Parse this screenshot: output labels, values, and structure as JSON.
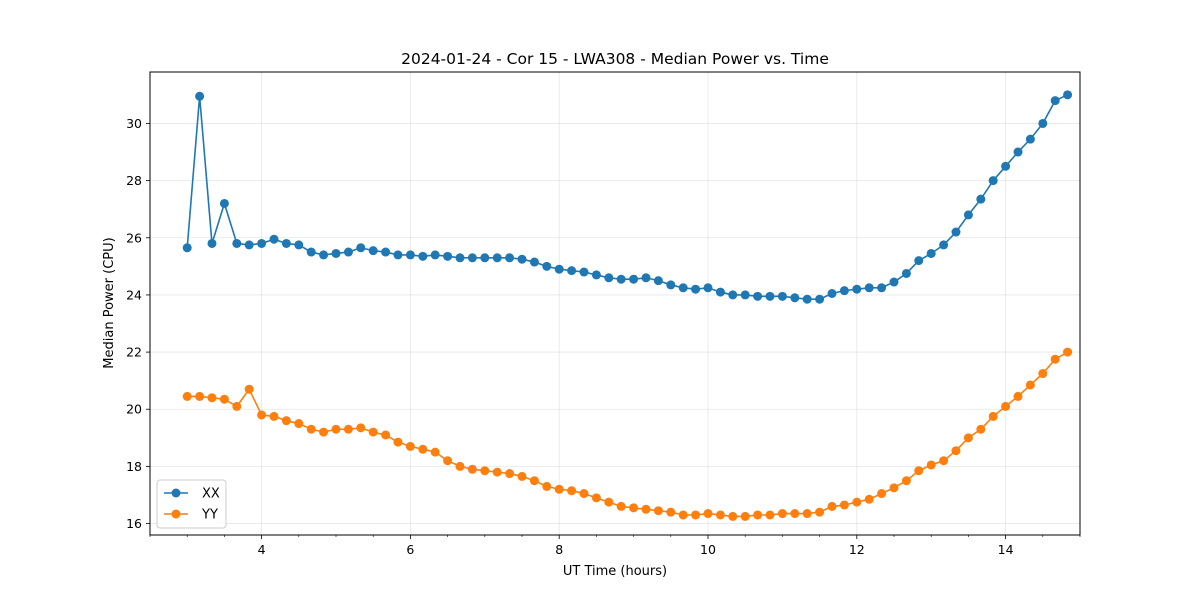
{
  "chart_data": {
    "type": "line",
    "title": "2024-01-24 - Cor 15 - LWA308 - Median Power vs. Time",
    "xlabel": "UT Time (hours)",
    "ylabel": "Median Power (CPU)",
    "xlim": [
      2.5,
      15.0
    ],
    "ylim": [
      15.6,
      31.8
    ],
    "x_ticks": [
      4,
      6,
      8,
      10,
      12,
      14
    ],
    "x_tick_labels": [
      "4",
      "6",
      "8",
      "10",
      "12",
      "14"
    ],
    "y_ticks": [
      16,
      18,
      20,
      22,
      24,
      26,
      28,
      30
    ],
    "y_tick_labels": [
      "16",
      "18",
      "20",
      "22",
      "24",
      "26",
      "28",
      "30"
    ],
    "grid": true,
    "legend": "lower-left",
    "x": [
      3.0,
      3.167,
      3.333,
      3.5,
      3.667,
      3.833,
      4.0,
      4.167,
      4.333,
      4.5,
      4.667,
      4.833,
      5.0,
      5.167,
      5.333,
      5.5,
      5.667,
      5.833,
      6.0,
      6.167,
      6.333,
      6.5,
      6.667,
      6.833,
      7.0,
      7.167,
      7.333,
      7.5,
      7.667,
      7.833,
      8.0,
      8.167,
      8.333,
      8.5,
      8.667,
      8.833,
      9.0,
      9.167,
      9.333,
      9.5,
      9.667,
      9.833,
      10.0,
      10.167,
      10.333,
      10.5,
      10.667,
      10.833,
      11.0,
      11.167,
      11.333,
      11.5,
      11.667,
      11.833,
      12.0,
      12.167,
      12.333,
      12.5,
      12.667,
      12.833,
      13.0,
      13.167,
      13.333,
      13.5,
      13.667,
      13.833,
      14.0,
      14.167,
      14.333,
      14.5,
      14.667,
      14.833
    ],
    "series": [
      {
        "name": "XX",
        "color": "#1f77b4",
        "values": [
          25.65,
          30.95,
          25.8,
          27.2,
          25.8,
          25.75,
          25.8,
          25.95,
          25.8,
          25.75,
          25.5,
          25.4,
          25.45,
          25.5,
          25.65,
          25.55,
          25.5,
          25.4,
          25.4,
          25.35,
          25.4,
          25.35,
          25.3,
          25.3,
          25.3,
          25.3,
          25.3,
          25.25,
          25.15,
          25.0,
          24.9,
          24.85,
          24.8,
          24.7,
          24.6,
          24.55,
          24.55,
          24.6,
          24.5,
          24.35,
          24.25,
          24.2,
          24.25,
          24.1,
          24.0,
          24.0,
          23.95,
          23.95,
          23.95,
          23.9,
          23.85,
          23.85,
          24.05,
          24.15,
          24.2,
          24.25,
          24.25,
          24.45,
          24.75,
          25.2,
          25.45,
          25.75,
          26.2,
          26.8,
          27.35,
          28.0,
          28.5,
          29.0,
          29.45,
          30.0,
          30.8,
          31.0
        ]
      },
      {
        "name": "YY",
        "color": "#ff7f0e",
        "values": [
          20.45,
          20.45,
          20.4,
          20.35,
          20.1,
          20.7,
          19.8,
          19.75,
          19.6,
          19.5,
          19.3,
          19.2,
          19.3,
          19.3,
          19.35,
          19.2,
          19.1,
          18.85,
          18.7,
          18.6,
          18.5,
          18.2,
          18.0,
          17.9,
          17.85,
          17.8,
          17.75,
          17.65,
          17.5,
          17.3,
          17.2,
          17.15,
          17.05,
          16.9,
          16.75,
          16.6,
          16.55,
          16.5,
          16.45,
          16.4,
          16.3,
          16.3,
          16.35,
          16.3,
          16.25,
          16.25,
          16.3,
          16.3,
          16.35,
          16.35,
          16.35,
          16.4,
          16.6,
          16.65,
          16.75,
          16.85,
          17.05,
          17.25,
          17.5,
          17.85,
          18.05,
          18.2,
          18.55,
          19.0,
          19.3,
          19.75,
          20.1,
          20.45,
          20.85,
          21.25,
          21.75,
          22.0
        ]
      }
    ]
  }
}
